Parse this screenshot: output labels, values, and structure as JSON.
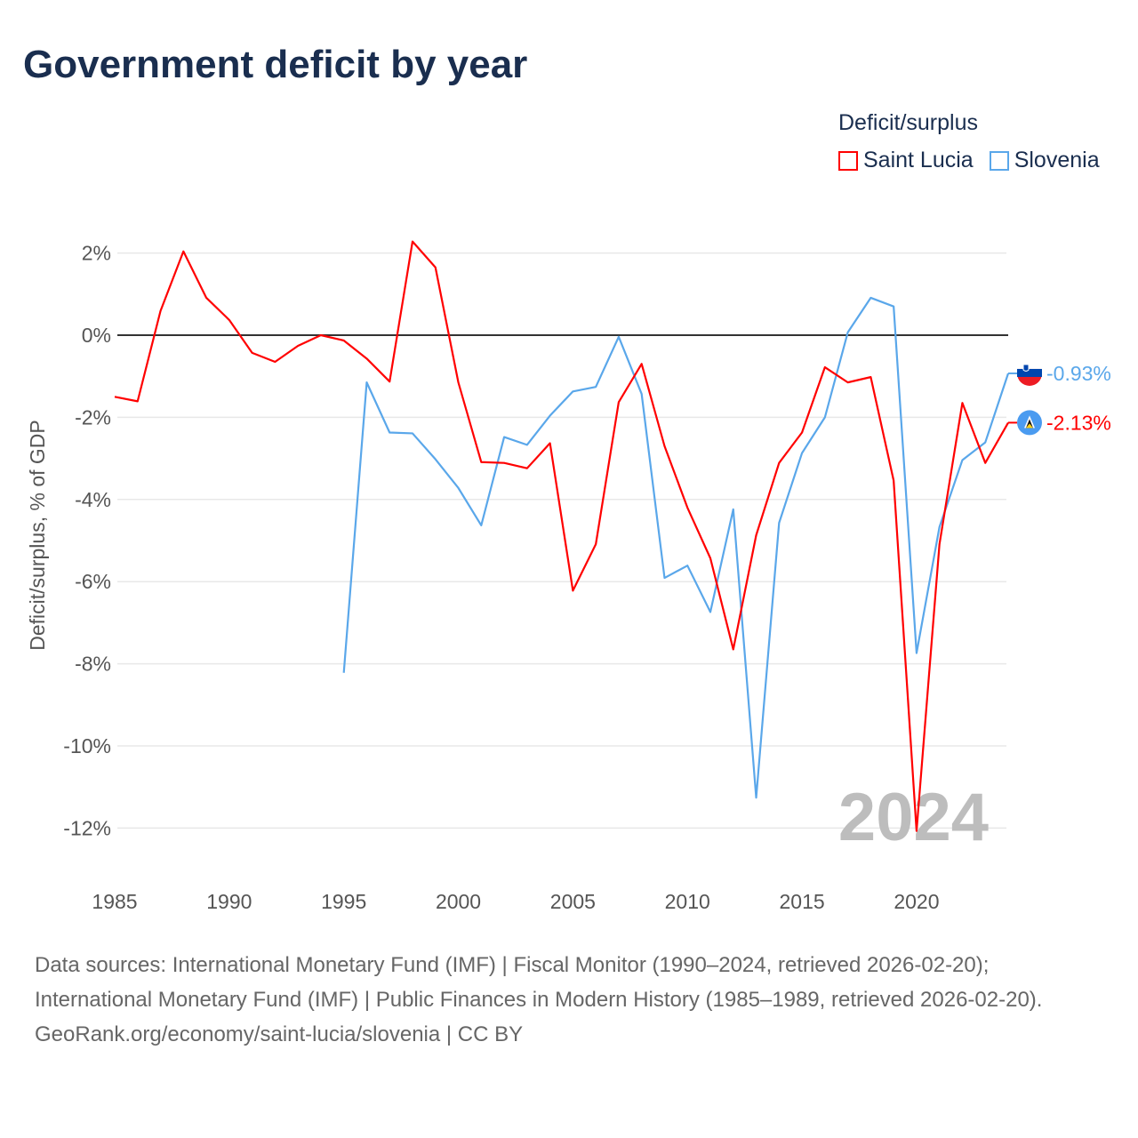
{
  "chart_data": {
    "type": "line",
    "title": "Government deficit by year",
    "xlabel": "",
    "ylabel": "Deficit/surplus, % of GDP",
    "xlim": [
      1985,
      2024
    ],
    "ylim": [
      -12,
      2
    ],
    "grid": true,
    "y_ticks": [
      2,
      0,
      -2,
      -4,
      -6,
      -8,
      -10,
      -12
    ],
    "y_tick_labels": [
      "2%",
      "0%",
      "-2%",
      "-4%",
      "-6%",
      "-8%",
      "-10%",
      "-12%"
    ],
    "x_ticks": [
      1985,
      1990,
      1995,
      2000,
      2005,
      2010,
      2015,
      2020
    ],
    "x_tick_labels": [
      "1985",
      "1990",
      "1995",
      "2000",
      "2005",
      "2010",
      "2015",
      "2020"
    ],
    "legend_title": "Deficit/surplus",
    "legend_placement": "top-right",
    "year_watermark": "2024",
    "series": [
      {
        "name": "Saint Lucia",
        "color": "#ff0000",
        "end_label": "-2.13%",
        "flag": "saint-lucia",
        "x": [
          1985,
          1986,
          1987,
          1988,
          1989,
          1990,
          1991,
          1992,
          1993,
          1994,
          1995,
          1996,
          1997,
          1998,
          1999,
          2000,
          2001,
          2002,
          2003,
          2004,
          2005,
          2006,
          2007,
          2008,
          2009,
          2010,
          2011,
          2012,
          2013,
          2014,
          2015,
          2016,
          2017,
          2018,
          2019,
          2020,
          2021,
          2022,
          2023,
          2024
        ],
        "values": [
          -1.5,
          -1.61,
          0.59,
          2.04,
          0.91,
          0.37,
          -0.43,
          -0.65,
          -0.26,
          0.0,
          -0.13,
          -0.57,
          -1.13,
          2.28,
          1.65,
          -1.15,
          -3.09,
          -3.11,
          -3.24,
          -2.63,
          -6.22,
          -5.09,
          -1.63,
          -0.7,
          -2.7,
          -4.2,
          -5.43,
          -7.65,
          -4.87,
          -3.11,
          -2.37,
          -0.78,
          -1.15,
          -1.02,
          -3.54,
          -12.07,
          -5.09,
          -1.65,
          -3.11,
          -2.13
        ]
      },
      {
        "name": "Slovenia",
        "color": "#5aa7ea",
        "end_label": "-0.93%",
        "flag": "slovenia",
        "x": [
          1995,
          1996,
          1997,
          1998,
          1999,
          2000,
          2001,
          2002,
          2003,
          2004,
          2005,
          2006,
          2007,
          2008,
          2009,
          2010,
          2011,
          2012,
          2013,
          2014,
          2015,
          2016,
          2017,
          2018,
          2019,
          2020,
          2021,
          2022,
          2023,
          2024
        ],
        "values": [
          -8.22,
          -1.15,
          -2.37,
          -2.39,
          -3.02,
          -3.72,
          -4.63,
          -2.48,
          -2.67,
          -1.96,
          -1.37,
          -1.26,
          -0.04,
          -1.43,
          -5.91,
          -5.61,
          -6.74,
          -4.24,
          -11.26,
          -4.57,
          -2.87,
          -2.0,
          0.07,
          0.91,
          0.7,
          -7.74,
          -4.67,
          -3.04,
          -2.61,
          -0.93
        ]
      }
    ]
  },
  "footer": {
    "sources": "Data sources: International Monetary Fund (IMF) | Fiscal Monitor (1990–2024, retrieved 2026-02-20); International Monetary Fund (IMF) | Public Finances in Modern History (1985–1989, retrieved 2026-02-20).",
    "attribution": "GeoRank.org/economy/saint-lucia/slovenia | CC BY"
  }
}
